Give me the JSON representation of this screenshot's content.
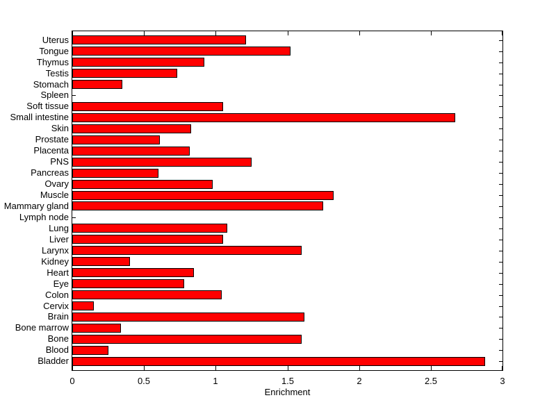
{
  "figure": {
    "background_color": "#FFFFFF",
    "axis_color": "#000000"
  },
  "chart_data": {
    "type": "bar",
    "orientation": "horizontal",
    "title": "",
    "xlabel": "Enrichment",
    "ylabel": "",
    "xlim": [
      0,
      3
    ],
    "xticks": [
      0,
      0.5,
      1,
      1.5,
      2,
      2.5,
      3
    ],
    "xtick_labels": [
      "0",
      "0.5",
      "1",
      "1.5",
      "2",
      "2.5",
      "3"
    ],
    "grid": false,
    "legend": false,
    "bar_color": "#FF0000",
    "bar_edge_color": "#000000",
    "row_order": "top-to-bottom",
    "categories": [
      "Uterus",
      "Tongue",
      "Thymus",
      "Testis",
      "Stomach",
      "Spleen",
      "Soft tissue",
      "Small intestine",
      "Skin",
      "Prostate",
      "Placenta",
      "PNS",
      "Pancreas",
      "Ovary",
      "Muscle",
      "Mammary gland",
      "Lymph node",
      "Lung",
      "Liver",
      "Larynx",
      "Kidney",
      "Heart",
      "Eye",
      "Colon",
      "Cervix",
      "Brain",
      "Bone marrow",
      "Bone",
      "Blood",
      "Bladder"
    ],
    "values": [
      1.21,
      1.52,
      0.92,
      0.73,
      0.35,
      0,
      1.05,
      2.67,
      0.83,
      0.61,
      0.82,
      1.25,
      0.6,
      0.98,
      1.82,
      1.75,
      0,
      1.08,
      1.05,
      1.6,
      0.4,
      0.85,
      0.78,
      1.04,
      0.15,
      1.62,
      0.34,
      1.6,
      0.25,
      2.88
    ]
  }
}
